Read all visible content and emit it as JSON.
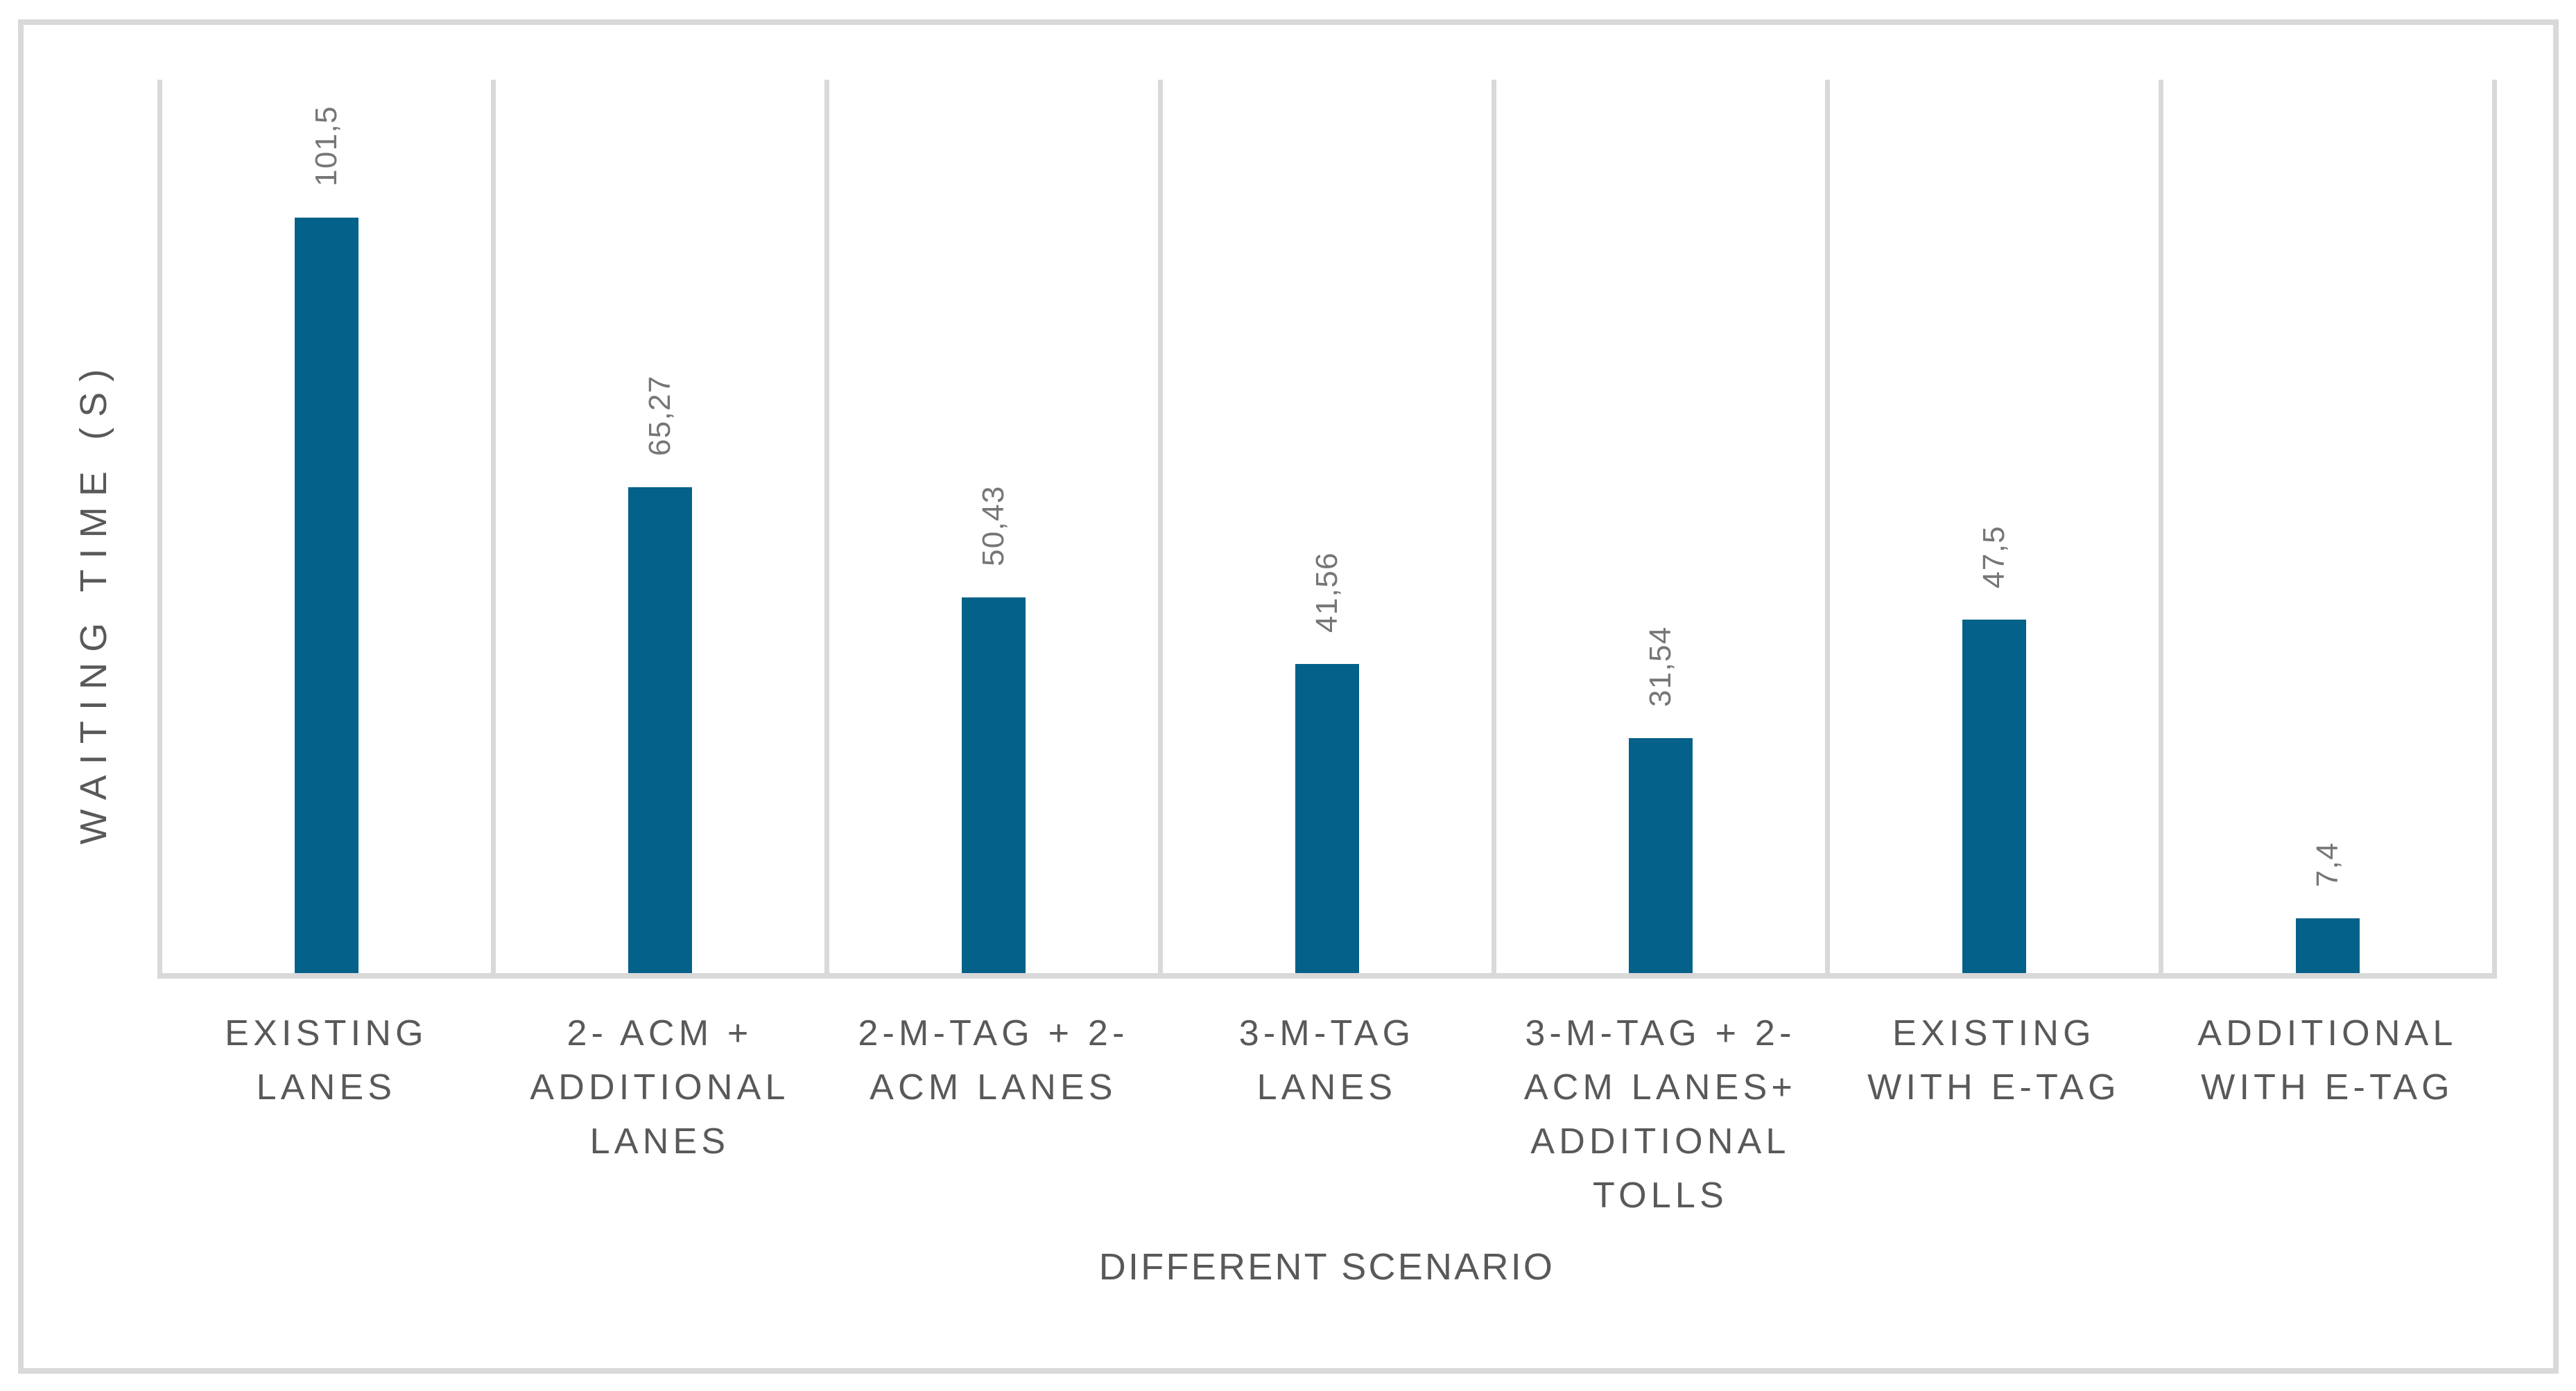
{
  "figure": {
    "kind": "embedded-excel-style-bar-chart",
    "background": "#FFFFFF",
    "frame_border_color": "#D9D9D9"
  },
  "chart_data": {
    "type": "bar",
    "title": "",
    "xlabel": "DIFFERENT SCENARIO",
    "ylabel": "WAITING TIME (S)",
    "categories": [
      "EXISTING\nLANES",
      "2- ACM +\nADDITIONAL\nLANES",
      "2-M-TAG + 2-\nACM LANES",
      "3-M-TAG\nLANES",
      "3-M-TAG + 2-\nACM LANES+\nADDITIONAL\nTOLLS",
      "EXISTING\nWITH E-TAG",
      "ADDITIONAL\nWITH E-TAG"
    ],
    "values": [
      101.5,
      65.27,
      50.43,
      41.56,
      31.54,
      47.5,
      7.4
    ],
    "value_labels": [
      "101,5",
      "65,27",
      "50,43",
      "41,56",
      "31,54",
      "47,5",
      "7,4"
    ],
    "series_count": 1,
    "ylim": [
      0,
      120
    ],
    "y_ticks_visible": false,
    "grid": "vertical-category-separators",
    "legend": "none",
    "data_label_rotation_deg": -90,
    "colors": {
      "bar": "#046189",
      "grid": "#D9D9D9",
      "value_label": "#767676",
      "axis_text": "#595959",
      "background": "#FFFFFF"
    }
  }
}
